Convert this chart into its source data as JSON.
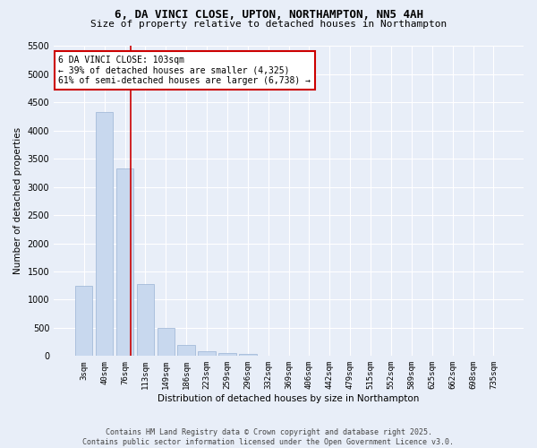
{
  "title1": "6, DA VINCI CLOSE, UPTON, NORTHAMPTON, NN5 4AH",
  "title2": "Size of property relative to detached houses in Northampton",
  "xlabel": "Distribution of detached houses by size in Northampton",
  "ylabel": "Number of detached properties",
  "bar_labels": [
    "3sqm",
    "40sqm",
    "76sqm",
    "113sqm",
    "149sqm",
    "186sqm",
    "223sqm",
    "259sqm",
    "296sqm",
    "332sqm",
    "369sqm",
    "406sqm",
    "442sqm",
    "479sqm",
    "515sqm",
    "552sqm",
    "589sqm",
    "625sqm",
    "662sqm",
    "698sqm",
    "735sqm"
  ],
  "bar_values": [
    1250,
    4325,
    3325,
    1275,
    500,
    200,
    90,
    50,
    40,
    0,
    0,
    0,
    0,
    0,
    0,
    0,
    0,
    0,
    0,
    0,
    0
  ],
  "bar_color": "#c8d8ee",
  "bar_edgecolor": "#9ab4d4",
  "background_color": "#e8eef8",
  "grid_color": "#ffffff",
  "ylim": [
    0,
    5500
  ],
  "yticks": [
    0,
    500,
    1000,
    1500,
    2000,
    2500,
    3000,
    3500,
    4000,
    4500,
    5000,
    5500
  ],
  "vline_x": 2.27,
  "vline_color": "#cc0000",
  "annotation_text": "6 DA VINCI CLOSE: 103sqm\n← 39% of detached houses are smaller (4,325)\n61% of semi-detached houses are larger (6,738) →",
  "annotation_box_color": "#ffffff",
  "annotation_box_edgecolor": "#cc0000",
  "footer1": "Contains HM Land Registry data © Crown copyright and database right 2025.",
  "footer2": "Contains public sector information licensed under the Open Government Licence v3.0."
}
